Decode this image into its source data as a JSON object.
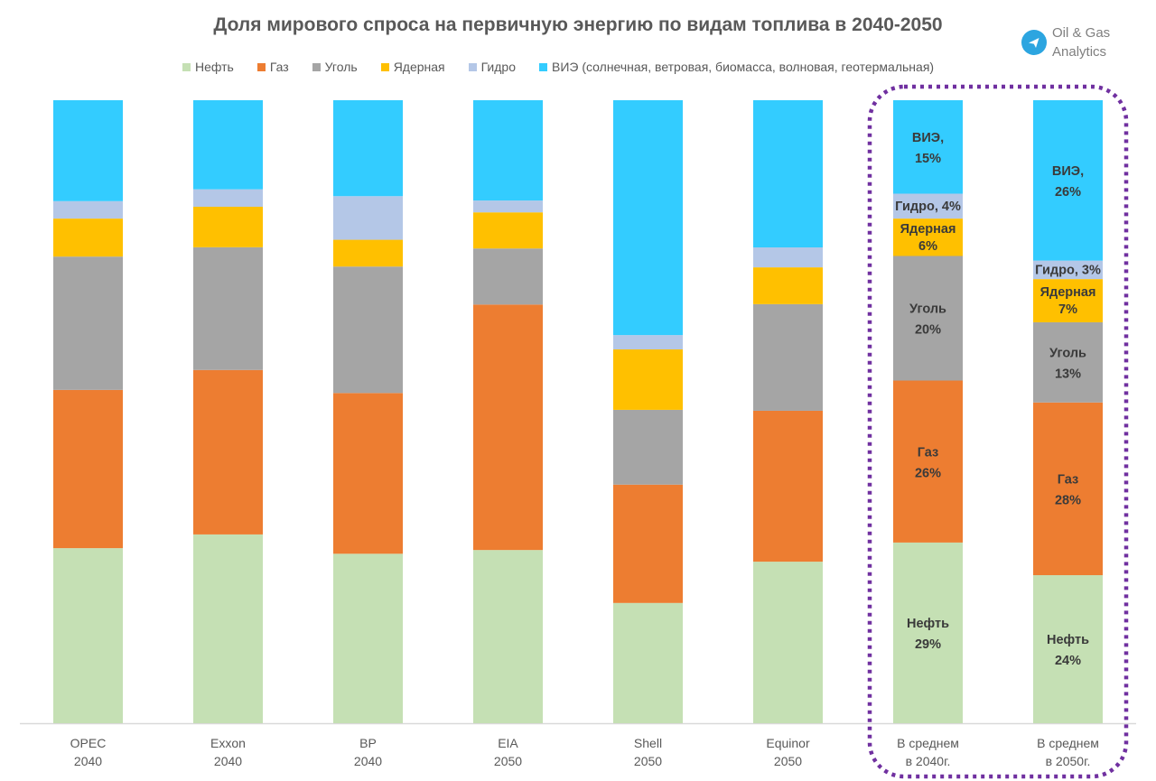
{
  "brand": {
    "line1": "Oil & Gas",
    "line2": "Analytics",
    "icon": "telegram-icon",
    "color": "#2ca5e0"
  },
  "highlight": {
    "color": "#7030a0",
    "style": "dotted-rounded-box",
    "covers": [
      "В среднем в 2040г.",
      "В среднем в 2050г."
    ]
  },
  "chart_data": {
    "type": "bar",
    "stacked": true,
    "percent_stacked": true,
    "title": "Доля мирового спроса на первичную энергию по видам топлива в 2040-2050",
    "xlabel": "",
    "ylabel": "",
    "ylim": [
      0,
      100
    ],
    "grid": false,
    "legend_position": "top",
    "categories": [
      [
        "OPEC",
        "2040"
      ],
      [
        "Exxon",
        "2040"
      ],
      [
        "BP",
        "2040"
      ],
      [
        "EIA",
        "2050"
      ],
      [
        "Shell",
        "2050"
      ],
      [
        "Equinor",
        "2050"
      ],
      [
        "В среднем",
        "в 2040г."
      ],
      [
        "В среднем",
        "в 2050г."
      ]
    ],
    "series": [
      {
        "name": "Нефть",
        "short": "Нефть",
        "color": "#c5e0b4",
        "values": [
          28.1,
          30.3,
          27.2,
          27.8,
          19.3,
          25.9,
          29,
          24
        ]
      },
      {
        "name": "Газ",
        "short": "Газ",
        "color": "#ed7d31",
        "values": [
          25.4,
          26.4,
          25.8,
          39.4,
          19.0,
          24.2,
          26,
          28
        ]
      },
      {
        "name": "Уголь",
        "short": "Уголь",
        "color": "#a5a5a5",
        "values": [
          21.4,
          19.7,
          20.3,
          9.0,
          12.0,
          17.1,
          20,
          13
        ]
      },
      {
        "name": "Ядерная",
        "short": "Ядерная",
        "color": "#ffc000",
        "values": [
          6.1,
          6.5,
          4.3,
          5.8,
          9.7,
          5.9,
          6,
          7
        ]
      },
      {
        "name": "Гидро",
        "short": "Гидро",
        "color": "#b4c7e7",
        "values": [
          2.8,
          2.8,
          7.0,
          1.9,
          2.3,
          3.2,
          4,
          3
        ]
      },
      {
        "name": "ВИЭ (солнечная, ветровая, биомасса, волновая, геотермальная)",
        "short": "ВИЭ",
        "color": "#33ccff",
        "values": [
          16.2,
          14.3,
          15.4,
          16.1,
          37.7,
          23.6,
          15,
          26
        ]
      }
    ],
    "data_labels": [
      {
        "category": 6,
        "series": 0,
        "lines": [
          "Нефть",
          "29%"
        ]
      },
      {
        "category": 6,
        "series": 1,
        "lines": [
          "Газ",
          "26%"
        ]
      },
      {
        "category": 6,
        "series": 2,
        "lines": [
          "Уголь",
          "20%"
        ]
      },
      {
        "category": 6,
        "series": 3,
        "lines": [
          "Ядерная",
          "6%"
        ]
      },
      {
        "category": 6,
        "series": 4,
        "lines": [
          "Гидро, 4%"
        ]
      },
      {
        "category": 6,
        "series": 5,
        "lines": [
          "ВИЭ,",
          "15%"
        ]
      },
      {
        "category": 7,
        "series": 0,
        "lines": [
          "Нефть",
          "24%"
        ]
      },
      {
        "category": 7,
        "series": 1,
        "lines": [
          "Газ",
          "28%"
        ]
      },
      {
        "category": 7,
        "series": 2,
        "lines": [
          "Уголь",
          "13%"
        ]
      },
      {
        "category": 7,
        "series": 3,
        "lines": [
          "Ядерная",
          "7%"
        ]
      },
      {
        "category": 7,
        "series": 4,
        "lines": [
          "Гидро, 3%"
        ]
      },
      {
        "category": 7,
        "series": 5,
        "lines": [
          "ВИЭ,",
          "26%"
        ]
      }
    ]
  }
}
